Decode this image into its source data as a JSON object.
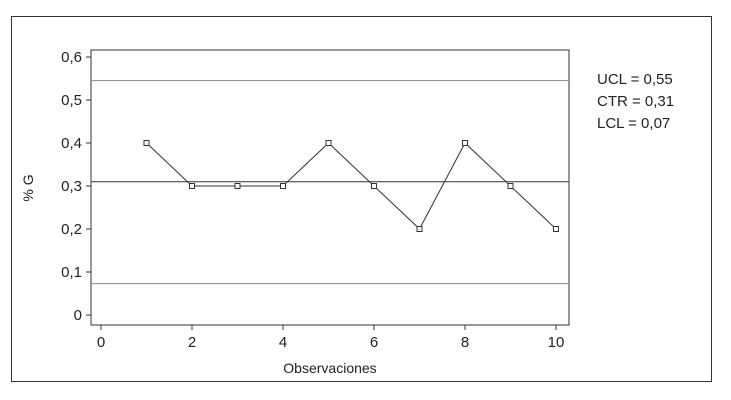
{
  "chart_data": {
    "type": "line",
    "xlabel": "Observaciones",
    "ylabel": "% G",
    "xlim": [
      0,
      10
    ],
    "ylim": [
      0,
      0.6
    ],
    "x_ticks": [
      0,
      2,
      4,
      6,
      8,
      10
    ],
    "x_tick_labels": [
      "0",
      "2",
      "4",
      "6",
      "8",
      "10"
    ],
    "y_ticks": [
      0,
      0.1,
      0.2,
      0.3,
      0.4,
      0.5,
      0.6
    ],
    "y_tick_labels": [
      "0",
      "0,1",
      "0,2",
      "0,3",
      "0,4",
      "0,5",
      "0,6"
    ],
    "series": [
      {
        "x": [
          1,
          2,
          3,
          4,
          5,
          6,
          7,
          8,
          9,
          10
        ],
        "values": [
          0.4,
          0.3,
          0.3,
          0.3,
          0.4,
          0.3,
          0.2,
          0.4,
          0.3,
          0.2
        ],
        "color": "#333333",
        "marker": "square"
      }
    ],
    "control_limits": [
      {
        "key": "ucl",
        "value": 0.545,
        "label": "UCL = 0,55",
        "color": "#888888"
      },
      {
        "key": "ctr",
        "value": 0.31,
        "label": "CTR = 0,31",
        "color": "#333333"
      },
      {
        "key": "lcl",
        "value": 0.073,
        "label": "LCL = 0,07",
        "color": "#888888"
      }
    ],
    "grid": false,
    "legend": "none"
  }
}
